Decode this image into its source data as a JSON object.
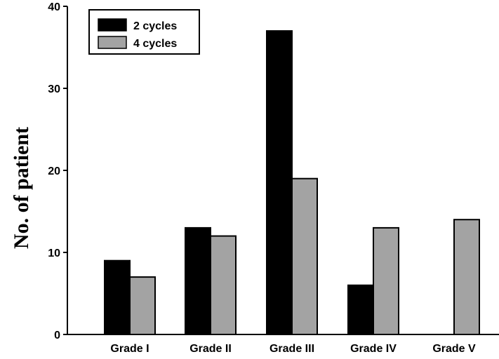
{
  "chart_data": {
    "type": "bar",
    "title": "",
    "xlabel": "",
    "ylabel": "No. of patient",
    "ylim": [
      0,
      40
    ],
    "yticks": [
      0,
      10,
      20,
      30,
      40
    ],
    "categories": [
      "Grade I",
      "Grade II",
      "Grade III",
      "Grade IV",
      "Grade V"
    ],
    "series": [
      {
        "name": "2 cycles",
        "values": [
          9,
          13,
          37,
          6,
          0
        ],
        "color": "#000000"
      },
      {
        "name": "4 cycles",
        "values": [
          7,
          12,
          19,
          13,
          14
        ],
        "color": "#a3a3a3"
      }
    ],
    "grid": false,
    "legend_position": "top-left"
  }
}
